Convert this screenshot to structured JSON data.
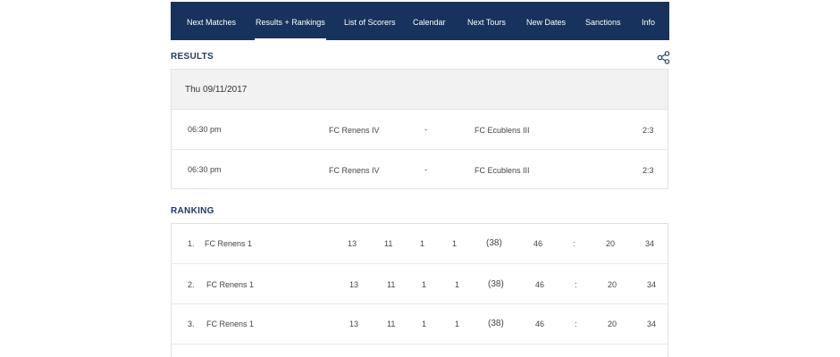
{
  "nav": {
    "items": [
      {
        "label": "Next Matches"
      },
      {
        "label": "Results + Rankings",
        "active": true
      },
      {
        "label": "List of Scorers"
      },
      {
        "label": "Calendar"
      },
      {
        "label": "Next Tours"
      },
      {
        "label": "New Dates"
      },
      {
        "label": "Sanctions"
      },
      {
        "label": "Info"
      }
    ]
  },
  "results": {
    "title": "RESULTS",
    "share_icon": "share-icon",
    "date": "Thu 09/11/2017",
    "matches": [
      {
        "time": "06:30 pm",
        "home": "FC Renens IV",
        "sep": "-",
        "away": "FC Ecublens III",
        "score": "2:3"
      },
      {
        "time": "06:30 pm",
        "home": "FC Renens IV",
        "sep": "-",
        "away": "FC Ecublens III",
        "score": "2:3"
      }
    ]
  },
  "ranking": {
    "title": "RANKING",
    "rows": [
      {
        "pos": "1.",
        "team": "FC Renens 1",
        "played": "13",
        "won": "11",
        "drawn": "1",
        "lost": "1",
        "pts_paren": "(38)",
        "goals_for": "46",
        "colon": ":",
        "goals_against": "20",
        "points": "34"
      },
      {
        "pos": "2.",
        "team": "FC Renens 1",
        "played": "13",
        "won": "11",
        "drawn": "1",
        "lost": "1",
        "pts_paren": "(38)",
        "goals_for": "46",
        "colon": ":",
        "goals_against": "20",
        "points": "34"
      },
      {
        "pos": "3.",
        "team": "FC Renens 1",
        "played": "13",
        "won": "11",
        "drawn": "1",
        "lost": "1",
        "pts_paren": "(38)",
        "goals_for": "46",
        "colon": ":",
        "goals_against": "20",
        "points": "34"
      }
    ]
  },
  "colors": {
    "nav_bg": "#17325d",
    "heading": "#1f3a66",
    "row_header_bg": "#f2f2f2"
  }
}
